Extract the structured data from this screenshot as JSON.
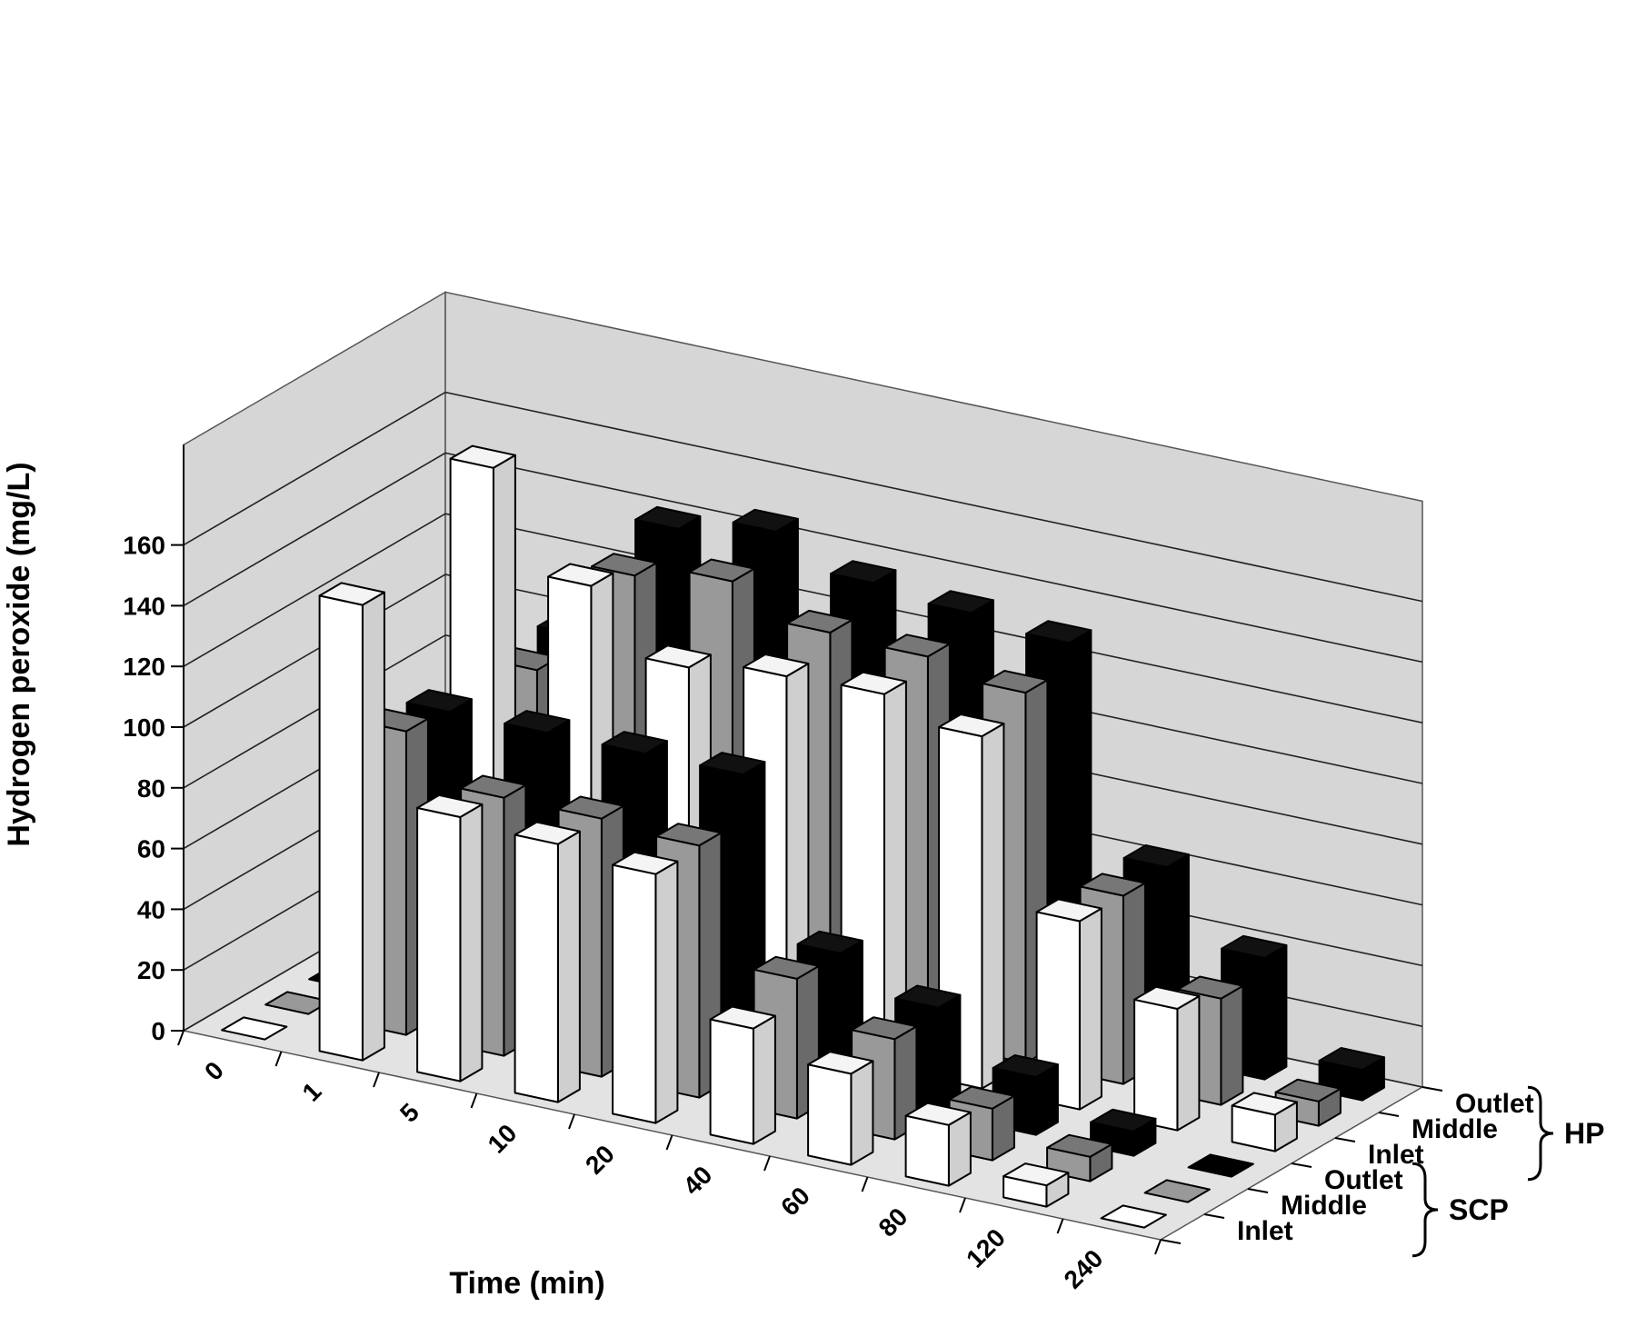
{
  "chart_data": {
    "type": "bar3d",
    "title": "",
    "xlabel": "Time (min)",
    "ylabel": "Hydrogen peroxide (mg/L)",
    "ylim": [
      0,
      160
    ],
    "yticks": [
      "0",
      "20",
      "40",
      "60",
      "80",
      "100",
      "120",
      "140",
      "160"
    ],
    "categories": [
      "0",
      "1",
      "5",
      "10",
      "20",
      "40",
      "60",
      "80",
      "120",
      "240"
    ],
    "depth_labels": [
      "Inlet",
      "Middle",
      "Outlet",
      "Inlet",
      "Middle",
      "Outlet"
    ],
    "groups": [
      {
        "name": "SCP",
        "rows": [
          "Inlet",
          "Middle",
          "Outlet"
        ]
      },
      {
        "name": "HP",
        "rows": [
          "Inlet",
          "Middle",
          "Outlet"
        ]
      }
    ],
    "series": [
      {
        "name": "SCP Inlet",
        "group": "SCP",
        "row": "Inlet",
        "values": [
          0,
          150,
          87,
          85,
          82,
          38,
          30,
          20,
          7,
          0
        ]
      },
      {
        "name": "SCP Middle",
        "group": "SCP",
        "row": "Middle",
        "values": [
          0,
          100,
          85,
          85,
          83,
          46,
          33,
          17,
          8,
          0
        ]
      },
      {
        "name": "SCP Outlet",
        "group": "SCP",
        "row": "Outlet",
        "values": [
          0,
          98,
          98,
          98,
          98,
          46,
          35,
          19,
          8,
          0
        ]
      },
      {
        "name": "HP Inlet",
        "group": "HP",
        "row": "Inlet",
        "values": [
          0,
          170,
          138,
          118,
          122,
          123,
          116,
          62,
          40,
          12
        ]
      },
      {
        "name": "HP Middle",
        "group": "HP",
        "row": "Middle",
        "values": [
          0,
          95,
          133,
          138,
          128,
          127,
          122,
          62,
          35,
          8
        ]
      },
      {
        "name": "HP Outlet",
        "group": "HP",
        "row": "Outlet",
        "values": [
          0,
          98,
          140,
          146,
          136,
          133,
          130,
          63,
          40,
          10
        ]
      }
    ],
    "colors": {
      "Inlet": "#ffffff",
      "Middle": "#999999",
      "Outlet": "#000000",
      "wall": "#d6d6d6",
      "floor": "#e3e3e3"
    },
    "grid": true,
    "legend": "none"
  }
}
